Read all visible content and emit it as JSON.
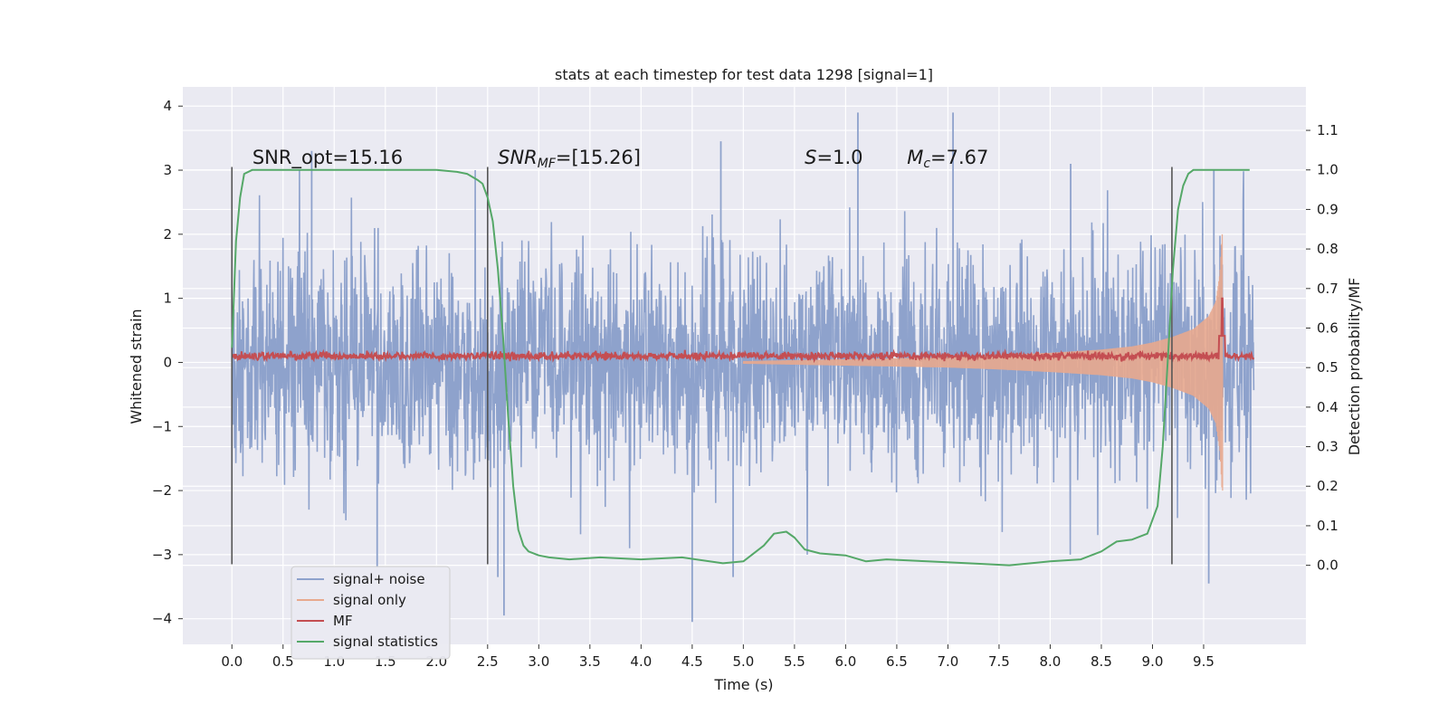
{
  "chart_data": {
    "type": "line",
    "title": "stats at each timestep for test data 1298 [signal=1]",
    "xlabel": "Time (s)",
    "ylabel": "Whitened strain",
    "y2label": "Detection probability/MF",
    "xlim": [
      -0.48,
      10.5
    ],
    "ylim": [
      -4.4,
      4.3
    ],
    "y2lim": [
      -0.2,
      1.21
    ],
    "x_ticks": [
      0.0,
      0.5,
      1.0,
      1.5,
      2.0,
      2.5,
      3.0,
      3.5,
      4.0,
      4.5,
      5.0,
      5.5,
      6.0,
      6.5,
      7.0,
      7.5,
      8.0,
      8.5,
      9.0,
      9.5
    ],
    "x_tick_labels": [
      "0.0",
      "0.5",
      "1.0",
      "1.5",
      "2.0",
      "2.5",
      "3.0",
      "3.5",
      "4.0",
      "4.5",
      "5.0",
      "5.5",
      "6.0",
      "6.5",
      "7.0",
      "7.5",
      "8.0",
      "8.5",
      "9.0",
      "9.5"
    ],
    "y_ticks": [
      -4,
      -3,
      -2,
      -1,
      0,
      1,
      2,
      3,
      4
    ],
    "y_tick_labels": [
      "−4",
      "−3",
      "−2",
      "−1",
      "0",
      "1",
      "2",
      "3",
      "4"
    ],
    "y2_ticks": [
      0.0,
      0.1,
      0.2,
      0.3,
      0.4,
      0.5,
      0.6,
      0.7,
      0.8,
      0.9,
      1.0,
      1.1
    ],
    "y2_tick_labels": [
      "0.0",
      "0.1",
      "0.2",
      "0.3",
      "0.4",
      "0.5",
      "0.6",
      "0.7",
      "0.8",
      "0.9",
      "1.0",
      "1.1"
    ],
    "grid": true,
    "legend_position": "lower-left",
    "vertical_markers": [
      0.0,
      2.5,
      9.19
    ],
    "vertical_marker_range": [
      -3.15,
      3.05
    ],
    "annotations": [
      {
        "parts": [
          {
            "t": "SNR_opt=15.16",
            "style": "normal"
          }
        ],
        "x": 0.2,
        "y": 3.1
      },
      {
        "parts": [
          {
            "t": "SNR",
            "style": "italic"
          },
          {
            "t": "MF",
            "style": "italic-sub"
          },
          {
            "t": "=[15.26]",
            "style": "normal"
          }
        ],
        "x": 2.6,
        "y": 3.1
      },
      {
        "parts": [
          {
            "t": "S",
            "style": "italic"
          },
          {
            "t": "=1.0",
            "style": "normal"
          }
        ],
        "x": 5.6,
        "y": 3.1
      },
      {
        "parts": [
          {
            "t": "M",
            "style": "italic"
          },
          {
            "t": "c",
            "style": "italic-sub"
          },
          {
            "t": "=7.67",
            "style": "normal"
          }
        ],
        "x": 6.6,
        "y": 3.1
      }
    ],
    "series": [
      {
        "name": "signal+ noise",
        "color": "#8ea2cc",
        "axis": "left",
        "kind": "noise",
        "x_range": [
          0.0,
          9.99
        ],
        "typical_amplitude": 1.15,
        "tall_spikes": [
          [
            0.78,
            3.3
          ],
          [
            1.42,
            -3.2
          ],
          [
            2.6,
            -3.35
          ],
          [
            2.66,
            -3.95
          ],
          [
            4.5,
            -4.05
          ],
          [
            4.78,
            3.45
          ],
          [
            4.9,
            -3.35
          ],
          [
            6.12,
            3.9
          ],
          [
            7.05,
            3.9
          ],
          [
            8.2,
            3.1
          ],
          [
            9.55,
            -3.45
          ],
          [
            9.6,
            3.0
          ]
        ]
      },
      {
        "name": "signal only",
        "color": "#e8a98e",
        "axis": "left",
        "kind": "chirp",
        "x": [
          5.0,
          6.0,
          7.0,
          7.5,
          8.0,
          8.5,
          8.8,
          9.0,
          9.2,
          9.4,
          9.55,
          9.62,
          9.66,
          9.68
        ],
        "envelope": [
          0.02,
          0.05,
          0.08,
          0.11,
          0.15,
          0.2,
          0.25,
          0.31,
          0.4,
          0.52,
          0.72,
          0.95,
          1.4,
          2.0
        ],
        "end_x": 9.685
      },
      {
        "name": "MF",
        "color": "#c44e52",
        "axis": "left",
        "kind": "mf",
        "base": 0.1,
        "jitter": 0.05,
        "x_range": [
          0.0,
          9.99
        ],
        "peak": {
          "x": 9.68,
          "y": 1.0
        }
      },
      {
        "name": "signal statistics",
        "color": "#55a868",
        "axis": "right",
        "kind": "line",
        "x": [
          0.0,
          0.04,
          0.08,
          0.12,
          0.2,
          0.3,
          0.5,
          1.0,
          1.5,
          2.0,
          2.2,
          2.3,
          2.4,
          2.45,
          2.5,
          2.55,
          2.6,
          2.65,
          2.7,
          2.75,
          2.8,
          2.85,
          2.9,
          3.0,
          3.1,
          3.3,
          3.6,
          4.0,
          4.4,
          4.8,
          5.0,
          5.2,
          5.3,
          5.42,
          5.5,
          5.6,
          5.75,
          6.0,
          6.2,
          6.4,
          6.8,
          7.2,
          7.6,
          8.0,
          8.3,
          8.5,
          8.65,
          8.8,
          8.95,
          9.05,
          9.1,
          9.15,
          9.2,
          9.25,
          9.3,
          9.35,
          9.4,
          9.5,
          9.6,
          9.75,
          9.95
        ],
        "y": [
          0.55,
          0.82,
          0.93,
          0.99,
          1.0,
          1.0,
          1.0,
          1.0,
          1.0,
          1.0,
          0.995,
          0.99,
          0.975,
          0.965,
          0.93,
          0.87,
          0.75,
          0.58,
          0.38,
          0.2,
          0.09,
          0.05,
          0.035,
          0.025,
          0.02,
          0.015,
          0.02,
          0.015,
          0.02,
          0.005,
          0.01,
          0.05,
          0.08,
          0.085,
          0.07,
          0.04,
          0.03,
          0.025,
          0.01,
          0.015,
          0.01,
          0.005,
          0.0,
          0.01,
          0.015,
          0.035,
          0.06,
          0.065,
          0.08,
          0.15,
          0.3,
          0.52,
          0.75,
          0.9,
          0.96,
          0.99,
          1.0,
          1.0,
          1.0,
          1.0,
          1.0
        ]
      }
    ]
  }
}
